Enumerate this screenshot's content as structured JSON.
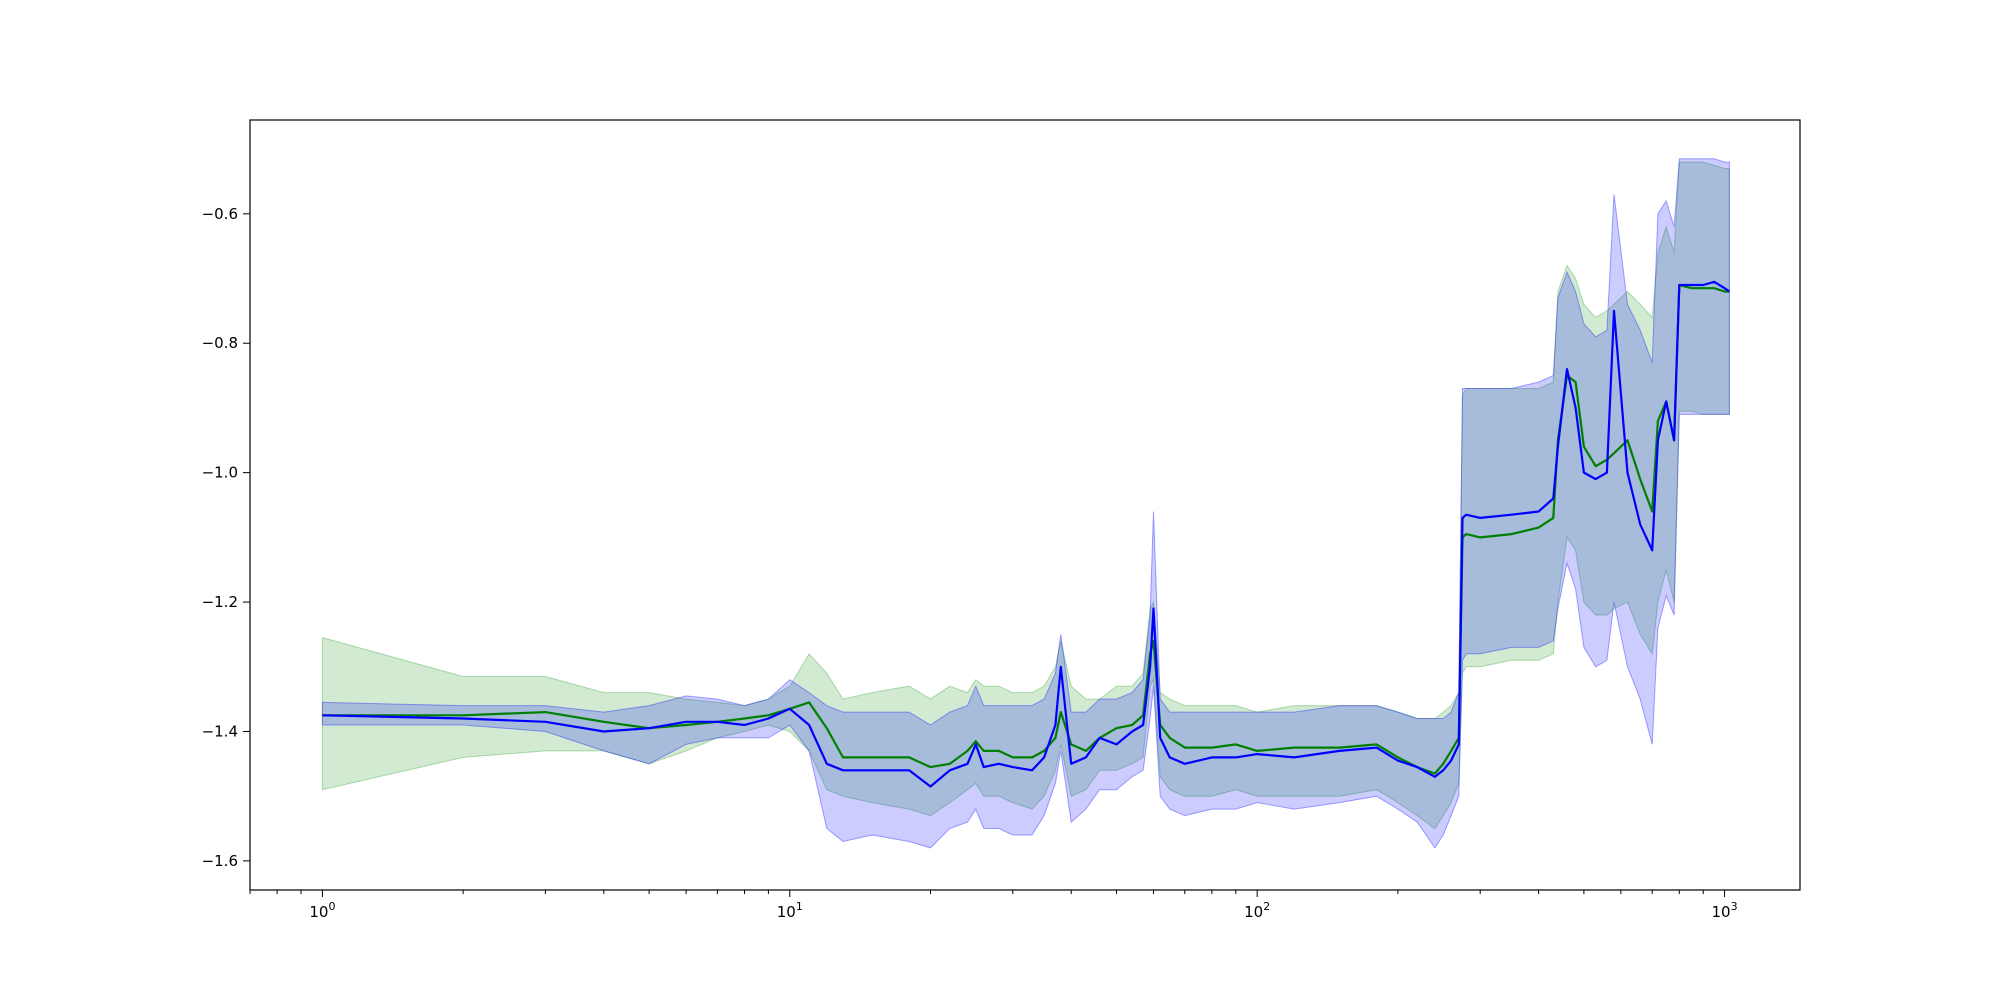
{
  "chart_data": {
    "type": "line",
    "title": "",
    "xlabel": "",
    "ylabel": "",
    "xscale": "log",
    "xlim": [
      0.7,
      1450
    ],
    "ylim": [
      -1.645,
      -0.455
    ],
    "grid": false,
    "legend": "none",
    "x_tick_labels": [
      {
        "base": "10",
        "exp": "0",
        "value": 1
      },
      {
        "base": "10",
        "exp": "1",
        "value": 10
      },
      {
        "base": "10",
        "exp": "2",
        "value": 100
      },
      {
        "base": "10",
        "exp": "3",
        "value": 1000
      }
    ],
    "y_tick_labels": [
      {
        "text": "−0.6",
        "value": -0.6
      },
      {
        "text": "−0.8",
        "value": -0.8
      },
      {
        "text": "−1.0",
        "value": -1.0
      },
      {
        "text": "−1.2",
        "value": -1.2
      },
      {
        "text": "−1.4",
        "value": -1.4
      },
      {
        "text": "−1.6",
        "value": -1.6
      }
    ],
    "series": [
      {
        "color": "#008000",
        "band_color": "#2ca02c",
        "band_opacity": 0.22,
        "x": [
          1,
          2,
          3,
          4,
          5,
          6,
          7,
          8,
          9,
          10,
          11,
          12,
          13,
          15,
          18,
          20,
          22,
          24,
          25,
          26,
          28,
          30,
          33,
          35,
          37,
          38,
          40,
          43,
          46,
          50,
          54,
          57,
          59,
          60,
          62,
          65,
          70,
          80,
          90,
          100,
          120,
          150,
          180,
          200,
          220,
          240,
          250,
          260,
          270,
          275,
          280,
          300,
          350,
          400,
          430,
          440,
          460,
          480,
          500,
          530,
          560,
          580,
          620,
          660,
          700,
          720,
          750,
          780,
          800,
          850,
          900,
          950,
          1000,
          1024
        ],
        "y": [
          -1.375,
          -1.375,
          -1.37,
          -1.385,
          -1.395,
          -1.39,
          -1.385,
          -1.38,
          -1.375,
          -1.365,
          -1.355,
          -1.395,
          -1.44,
          -1.44,
          -1.44,
          -1.455,
          -1.45,
          -1.43,
          -1.415,
          -1.43,
          -1.43,
          -1.44,
          -1.44,
          -1.43,
          -1.41,
          -1.37,
          -1.42,
          -1.43,
          -1.41,
          -1.395,
          -1.39,
          -1.375,
          -1.28,
          -1.26,
          -1.39,
          -1.41,
          -1.425,
          -1.425,
          -1.42,
          -1.43,
          -1.425,
          -1.425,
          -1.42,
          -1.44,
          -1.455,
          -1.465,
          -1.45,
          -1.43,
          -1.41,
          -1.1,
          -1.095,
          -1.1,
          -1.095,
          -1.085,
          -1.07,
          -0.95,
          -0.85,
          -0.86,
          -0.96,
          -0.99,
          -0.98,
          -0.97,
          -0.95,
          -1.01,
          -1.06,
          -0.92,
          -0.89,
          -0.95,
          -0.71,
          -0.715,
          -0.715,
          -0.715,
          -0.72,
          -0.72
        ],
        "lower": [
          -1.49,
          -1.44,
          -1.43,
          -1.43,
          -1.45,
          -1.43,
          -1.41,
          -1.4,
          -1.39,
          -1.4,
          -1.43,
          -1.49,
          -1.5,
          -1.51,
          -1.52,
          -1.53,
          -1.51,
          -1.49,
          -1.48,
          -1.5,
          -1.5,
          -1.51,
          -1.52,
          -1.5,
          -1.46,
          -1.42,
          -1.5,
          -1.49,
          -1.46,
          -1.46,
          -1.45,
          -1.44,
          -1.33,
          -1.32,
          -1.47,
          -1.49,
          -1.5,
          -1.5,
          -1.49,
          -1.5,
          -1.5,
          -1.5,
          -1.49,
          -1.51,
          -1.53,
          -1.55,
          -1.53,
          -1.51,
          -1.48,
          -1.31,
          -1.3,
          -1.3,
          -1.29,
          -1.29,
          -1.28,
          -1.2,
          -1.1,
          -1.12,
          -1.2,
          -1.22,
          -1.22,
          -1.21,
          -1.2,
          -1.25,
          -1.28,
          -1.2,
          -1.15,
          -1.2,
          -0.905,
          -0.905,
          -0.91,
          -0.91,
          -0.91,
          -0.91
        ],
        "upper": [
          -1.255,
          -1.315,
          -1.315,
          -1.34,
          -1.34,
          -1.35,
          -1.355,
          -1.36,
          -1.35,
          -1.33,
          -1.28,
          -1.31,
          -1.35,
          -1.34,
          -1.33,
          -1.35,
          -1.33,
          -1.34,
          -1.32,
          -1.33,
          -1.33,
          -1.34,
          -1.34,
          -1.33,
          -1.3,
          -1.26,
          -1.33,
          -1.35,
          -1.35,
          -1.33,
          -1.33,
          -1.31,
          -1.21,
          -1.2,
          -1.34,
          -1.35,
          -1.36,
          -1.36,
          -1.36,
          -1.37,
          -1.36,
          -1.36,
          -1.36,
          -1.37,
          -1.38,
          -1.38,
          -1.37,
          -1.36,
          -1.34,
          -0.88,
          -0.87,
          -0.87,
          -0.87,
          -0.87,
          -0.86,
          -0.72,
          -0.68,
          -0.7,
          -0.74,
          -0.76,
          -0.75,
          -0.74,
          -0.72,
          -0.74,
          -0.76,
          -0.66,
          -0.62,
          -0.66,
          -0.52,
          -0.52,
          -0.52,
          -0.525,
          -0.53,
          -0.53
        ]
      },
      {
        "color": "#0000ff",
        "band_color": "#0000ff",
        "band_opacity": 0.2,
        "x": [
          1,
          2,
          3,
          4,
          5,
          6,
          7,
          8,
          9,
          10,
          11,
          12,
          13,
          15,
          18,
          20,
          22,
          24,
          25,
          26,
          28,
          30,
          33,
          35,
          37,
          38,
          40,
          43,
          46,
          50,
          54,
          57,
          59,
          60,
          62,
          65,
          70,
          80,
          90,
          100,
          120,
          150,
          180,
          200,
          220,
          240,
          250,
          260,
          270,
          275,
          280,
          300,
          350,
          400,
          430,
          440,
          460,
          480,
          500,
          530,
          560,
          580,
          620,
          660,
          700,
          720,
          750,
          780,
          800,
          850,
          900,
          950,
          1000,
          1024
        ],
        "y": [
          -1.375,
          -1.38,
          -1.385,
          -1.4,
          -1.395,
          -1.385,
          -1.385,
          -1.39,
          -1.38,
          -1.365,
          -1.39,
          -1.45,
          -1.46,
          -1.46,
          -1.46,
          -1.485,
          -1.46,
          -1.45,
          -1.42,
          -1.455,
          -1.45,
          -1.455,
          -1.46,
          -1.44,
          -1.39,
          -1.3,
          -1.45,
          -1.44,
          -1.41,
          -1.42,
          -1.4,
          -1.39,
          -1.3,
          -1.21,
          -1.41,
          -1.44,
          -1.45,
          -1.44,
          -1.44,
          -1.435,
          -1.44,
          -1.43,
          -1.425,
          -1.445,
          -1.455,
          -1.47,
          -1.46,
          -1.445,
          -1.42,
          -1.07,
          -1.065,
          -1.07,
          -1.065,
          -1.06,
          -1.04,
          -0.96,
          -0.84,
          -0.9,
          -1.0,
          -1.01,
          -1.0,
          -0.75,
          -1.0,
          -1.08,
          -1.12,
          -0.95,
          -0.89,
          -0.95,
          -0.71,
          -0.71,
          -0.71,
          -0.705,
          -0.715,
          -0.72
        ],
        "lower": [
          -1.39,
          -1.39,
          -1.4,
          -1.43,
          -1.45,
          -1.42,
          -1.41,
          -1.41,
          -1.41,
          -1.39,
          -1.43,
          -1.55,
          -1.57,
          -1.56,
          -1.57,
          -1.58,
          -1.55,
          -1.54,
          -1.52,
          -1.55,
          -1.55,
          -1.56,
          -1.56,
          -1.53,
          -1.48,
          -1.43,
          -1.54,
          -1.52,
          -1.49,
          -1.49,
          -1.47,
          -1.46,
          -1.38,
          -1.33,
          -1.5,
          -1.52,
          -1.53,
          -1.52,
          -1.52,
          -1.51,
          -1.52,
          -1.51,
          -1.5,
          -1.52,
          -1.54,
          -1.58,
          -1.56,
          -1.53,
          -1.5,
          -1.29,
          -1.28,
          -1.28,
          -1.27,
          -1.27,
          -1.26,
          -1.21,
          -1.14,
          -1.18,
          -1.27,
          -1.3,
          -1.29,
          -1.2,
          -1.3,
          -1.35,
          -1.42,
          -1.24,
          -1.19,
          -1.22,
          -0.91,
          -0.91,
          -0.91,
          -0.91,
          -0.91,
          -0.91
        ],
        "upper": [
          -1.355,
          -1.36,
          -1.36,
          -1.37,
          -1.36,
          -1.345,
          -1.35,
          -1.36,
          -1.35,
          -1.32,
          -1.34,
          -1.36,
          -1.37,
          -1.37,
          -1.37,
          -1.39,
          -1.37,
          -1.36,
          -1.33,
          -1.36,
          -1.36,
          -1.36,
          -1.36,
          -1.35,
          -1.31,
          -1.25,
          -1.37,
          -1.37,
          -1.35,
          -1.35,
          -1.34,
          -1.32,
          -1.22,
          -1.06,
          -1.35,
          -1.37,
          -1.37,
          -1.37,
          -1.37,
          -1.37,
          -1.37,
          -1.36,
          -1.36,
          -1.37,
          -1.38,
          -1.38,
          -1.38,
          -1.37,
          -1.34,
          -0.87,
          -0.87,
          -0.87,
          -0.87,
          -0.86,
          -0.85,
          -0.73,
          -0.69,
          -0.72,
          -0.77,
          -0.79,
          -0.78,
          -0.57,
          -0.74,
          -0.78,
          -0.83,
          -0.6,
          -0.58,
          -0.62,
          -0.515,
          -0.515,
          -0.515,
          -0.515,
          -0.52,
          -0.52
        ]
      }
    ]
  }
}
